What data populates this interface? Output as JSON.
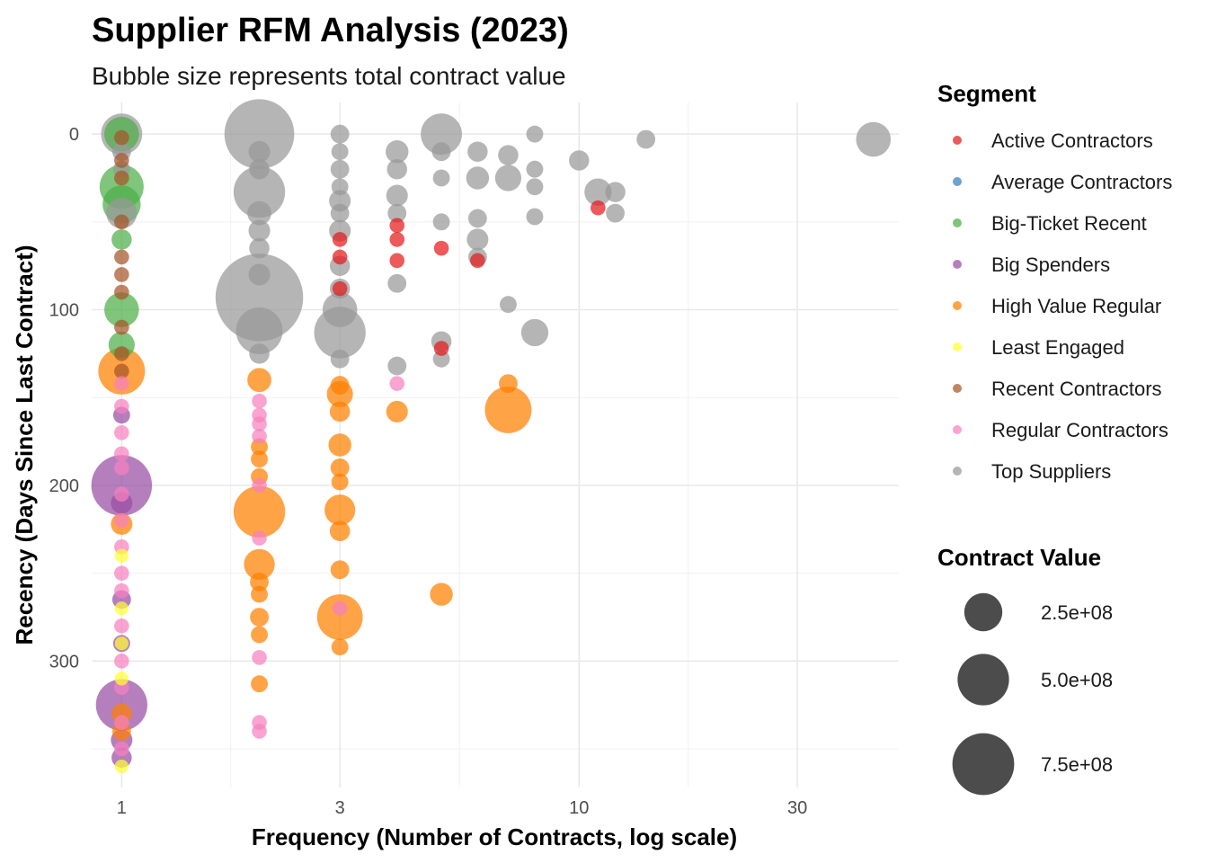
{
  "colors": {
    "Active Contractors": "#E41A1C",
    "Average Contractors": "#377EB8",
    "Big-Ticket Recent": "#4DAF4A",
    "Big Spenders": "#984EA3",
    "High Value Regular": "#FF7F00",
    "Least Engaged": "#FFFF33",
    "Recent Contractors": "#A65628",
    "Regular Contractors": "#F781BF",
    "Top Suppliers": "#999999"
  },
  "chart_data": {
    "type": "scatter",
    "title": "Supplier RFM Analysis (2023)",
    "subtitle": "Bubble size represents total contract value",
    "xlabel": "Frequency (Number of Contracts, log scale)",
    "ylabel": "Recency (Days Since Last Contract)",
    "x_scale": "log10",
    "xlim": [
      0.86,
      50
    ],
    "ylim": [
      -18,
      372
    ],
    "y_reversed": true,
    "x_ticks": [
      1,
      3,
      10,
      30
    ],
    "y_ticks": [
      0,
      100,
      200,
      300
    ],
    "grid": true,
    "legend_position": "right",
    "size_legend": {
      "title": "Contract Value",
      "values": [
        250000000,
        500000000,
        750000000
      ],
      "labels": [
        "2.5e+08",
        "5.0e+08",
        "7.5e+08"
      ]
    },
    "series": [
      {
        "name": "Top Suppliers",
        "points": [
          [
            1,
            0,
            0.3
          ],
          [
            1,
            10,
            0.04
          ],
          [
            1,
            20,
            0.03
          ],
          [
            1,
            45,
            0.15
          ],
          [
            2,
            0,
            0.98
          ],
          [
            2,
            10,
            0.06
          ],
          [
            2,
            20,
            0.05
          ],
          [
            2,
            33,
            0.5
          ],
          [
            2,
            45,
            0.08
          ],
          [
            2,
            55,
            0.06
          ],
          [
            2,
            65,
            0.05
          ],
          [
            2,
            80,
            0.06
          ],
          [
            2,
            93,
            1.6
          ],
          [
            2,
            112,
            0.4
          ],
          [
            2,
            125,
            0.05
          ],
          [
            3,
            0,
            0.04
          ],
          [
            3,
            10,
            0.03
          ],
          [
            3,
            20,
            0.04
          ],
          [
            3,
            30,
            0.03
          ],
          [
            3,
            38,
            0.06
          ],
          [
            3,
            45,
            0.04
          ],
          [
            3,
            55,
            0.06
          ],
          [
            3,
            75,
            0.05
          ],
          [
            3,
            88,
            0.05
          ],
          [
            3,
            100,
            0.2
          ],
          [
            3,
            113,
            0.5
          ],
          [
            3,
            128,
            0.04
          ],
          [
            4,
            10,
            0.07
          ],
          [
            4,
            20,
            0.05
          ],
          [
            4,
            35,
            0.06
          ],
          [
            4,
            45,
            0.04
          ],
          [
            4,
            85,
            0.04
          ],
          [
            4,
            132,
            0.04
          ],
          [
            5,
            0,
            0.3
          ],
          [
            5,
            10,
            0.04
          ],
          [
            5,
            25,
            0.03
          ],
          [
            5,
            50,
            0.03
          ],
          [
            5,
            118,
            0.05
          ],
          [
            5,
            128,
            0.03
          ],
          [
            6,
            10,
            0.05
          ],
          [
            6,
            25,
            0.07
          ],
          [
            6,
            48,
            0.04
          ],
          [
            6,
            60,
            0.06
          ],
          [
            6,
            70,
            0.04
          ],
          [
            7,
            12,
            0.05
          ],
          [
            7,
            25,
            0.1
          ],
          [
            7,
            97,
            0.03
          ],
          [
            8,
            0,
            0.03
          ],
          [
            8,
            20,
            0.03
          ],
          [
            8,
            47,
            0.03
          ],
          [
            8,
            30,
            0.03
          ],
          [
            8,
            113,
            0.11
          ],
          [
            10,
            15,
            0.05
          ],
          [
            11,
            33,
            0.11
          ],
          [
            12,
            33,
            0.05
          ],
          [
            12,
            45,
            0.04
          ],
          [
            14,
            3,
            0.04
          ],
          [
            44,
            3,
            0.2
          ]
        ]
      },
      {
        "name": "Big-Ticket Recent",
        "points": [
          [
            1,
            0,
            0.2
          ],
          [
            1,
            30,
            0.35
          ],
          [
            1,
            40,
            0.25
          ],
          [
            1,
            100,
            0.2
          ],
          [
            1,
            120,
            0.1
          ],
          [
            1,
            60,
            0.05
          ]
        ]
      },
      {
        "name": "Recent Contractors",
        "points": [
          [
            1,
            2,
            0.02
          ],
          [
            1,
            15,
            0.02
          ],
          [
            1,
            25,
            0.02
          ],
          [
            1,
            50,
            0.02
          ],
          [
            1,
            70,
            0.02
          ],
          [
            1,
            80,
            0.02
          ],
          [
            1,
            90,
            0.02
          ],
          [
            1,
            110,
            0.02
          ],
          [
            1,
            125,
            0.02
          ],
          [
            1,
            135,
            0.02
          ]
        ]
      },
      {
        "name": "Active Contractors",
        "points": [
          [
            3,
            60,
            0.02
          ],
          [
            3,
            70,
            0.02
          ],
          [
            3,
            88,
            0.02
          ],
          [
            4,
            52,
            0.02
          ],
          [
            4,
            60,
            0.02
          ],
          [
            4,
            72,
            0.02
          ],
          [
            5,
            65,
            0.02
          ],
          [
            5,
            122,
            0.02
          ],
          [
            6,
            72,
            0.02
          ],
          [
            11,
            42,
            0.02
          ]
        ]
      },
      {
        "name": "High Value Regular",
        "points": [
          [
            1,
            135,
            0.4
          ],
          [
            1,
            222,
            0.06
          ],
          [
            1,
            330,
            0.05
          ],
          [
            1,
            340,
            0.04
          ],
          [
            2,
            140,
            0.08
          ],
          [
            2,
            178,
            0.03
          ],
          [
            2,
            185,
            0.03
          ],
          [
            2,
            195,
            0.03
          ],
          [
            2,
            215,
            0.5
          ],
          [
            2,
            245,
            0.15
          ],
          [
            2,
            255,
            0.04
          ],
          [
            2,
            262,
            0.03
          ],
          [
            2,
            275,
            0.04
          ],
          [
            2,
            285,
            0.03
          ],
          [
            2,
            313,
            0.03
          ],
          [
            3,
            143,
            0.04
          ],
          [
            3,
            148,
            0.1
          ],
          [
            3,
            158,
            0.05
          ],
          [
            3,
            177,
            0.07
          ],
          [
            3,
            190,
            0.04
          ],
          [
            3,
            198,
            0.03
          ],
          [
            3,
            214,
            0.15
          ],
          [
            3,
            226,
            0.05
          ],
          [
            3,
            248,
            0.04
          ],
          [
            3,
            275,
            0.38
          ],
          [
            3,
            292,
            0.03
          ],
          [
            4,
            158,
            0.06
          ],
          [
            5,
            262,
            0.07
          ],
          [
            7,
            142,
            0.04
          ],
          [
            7,
            157,
            0.4
          ]
        ]
      },
      {
        "name": "Big Spenders",
        "points": [
          [
            1,
            160,
            0.03
          ],
          [
            1,
            200,
            0.72
          ],
          [
            1,
            210,
            0.06
          ],
          [
            1,
            265,
            0.04
          ],
          [
            1,
            290,
            0.03
          ],
          [
            1,
            325,
            0.5
          ],
          [
            1,
            345,
            0.06
          ],
          [
            1,
            355,
            0.05
          ]
        ]
      },
      {
        "name": "Regular Contractors",
        "points": [
          [
            1,
            142,
            0.02
          ],
          [
            1,
            155,
            0.02
          ],
          [
            1,
            170,
            0.02
          ],
          [
            1,
            182,
            0.02
          ],
          [
            1,
            190,
            0.02
          ],
          [
            1,
            205,
            0.02
          ],
          [
            1,
            220,
            0.02
          ],
          [
            1,
            235,
            0.02
          ],
          [
            1,
            250,
            0.02
          ],
          [
            1,
            260,
            0.02
          ],
          [
            1,
            280,
            0.02
          ],
          [
            1,
            300,
            0.02
          ],
          [
            1,
            315,
            0.02
          ],
          [
            1,
            335,
            0.02
          ],
          [
            1,
            350,
            0.02
          ],
          [
            2,
            152,
            0.02
          ],
          [
            2,
            160,
            0.02
          ],
          [
            2,
            165,
            0.02
          ],
          [
            2,
            172,
            0.02
          ],
          [
            2,
            200,
            0.02
          ],
          [
            2,
            230,
            0.02
          ],
          [
            2,
            298,
            0.02
          ],
          [
            2,
            335,
            0.02
          ],
          [
            2,
            340,
            0.02
          ],
          [
            3,
            270,
            0.02
          ],
          [
            4,
            142,
            0.02
          ]
        ]
      },
      {
        "name": "Least Engaged",
        "points": [
          [
            1,
            240,
            0.015
          ],
          [
            1,
            270,
            0.015
          ],
          [
            1,
            290,
            0.015
          ],
          [
            1,
            310,
            0.015
          ],
          [
            1,
            360,
            0.015
          ]
        ]
      }
    ]
  }
}
